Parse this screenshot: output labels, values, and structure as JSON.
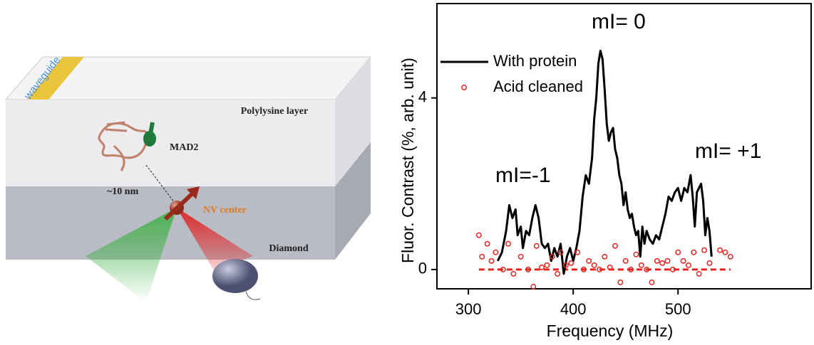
{
  "diagram": {
    "waveguide": "waveguide",
    "layer": "Polylysine layer",
    "protein": "MAD2",
    "distance": "~10 nm",
    "nv": "NV center",
    "substrate": "Diamond"
  },
  "chart_data": {
    "type": "line",
    "xlabel": "Frequency (MHz)",
    "ylabel": "Fluor. Contrast (%, arb. unit)",
    "xlim": [
      270,
      627
    ],
    "ylim": [
      -0.45,
      6.2
    ],
    "xticks": [
      300,
      400,
      500
    ],
    "yticks": [
      0,
      4
    ],
    "legend": "upper left",
    "annotations": [
      "mI= 0",
      "mI=-1",
      "mI= +1"
    ],
    "series": [
      {
        "name": "With protein",
        "color": "#000000",
        "type": "line",
        "x": [
          328,
          332,
          336,
          339,
          342,
          345,
          347,
          350,
          352,
          355,
          358,
          361,
          364,
          367,
          370,
          373,
          376,
          379,
          382,
          385,
          388,
          391,
          394,
          397,
          400,
          403,
          406,
          409,
          412,
          415,
          418,
          420,
          422,
          424,
          426,
          428,
          430,
          432,
          434,
          436,
          438,
          440,
          442,
          444,
          446,
          448,
          450,
          452,
          454,
          456,
          458,
          460,
          462,
          464,
          466,
          468,
          470,
          473,
          476,
          479,
          482,
          485,
          488,
          491,
          494,
          497,
          500,
          503,
          506,
          509,
          512,
          514,
          516,
          518,
          520,
          522,
          524,
          526,
          528,
          530,
          532
        ],
        "values": [
          0.2,
          0.4,
          0.9,
          1.5,
          1.2,
          1.4,
          0.8,
          1.0,
          0.5,
          0.9,
          0.8,
          1.2,
          1.5,
          1.2,
          0.6,
          0.5,
          0.6,
          0.2,
          0.5,
          0.3,
          0.6,
          -0.1,
          0.3,
          0.5,
          0.2,
          0.5,
          0.9,
          1.7,
          2.2,
          2.0,
          2.6,
          3.5,
          4.0,
          4.8,
          5.1,
          4.9,
          4.2,
          3.4,
          3.0,
          3.2,
          3.3,
          2.8,
          2.6,
          2.2,
          2.0,
          1.5,
          1.8,
          1.4,
          1.2,
          1.3,
          1.0,
          0.8,
          0.9,
          0.3,
          1.0,
          0.6,
          0.9,
          0.7,
          0.6,
          0.8,
          0.7,
          1.0,
          1.3,
          1.7,
          1.6,
          1.8,
          1.9,
          1.6,
          1.9,
          1.8,
          2.2,
          1.7,
          1.0,
          1.8,
          1.9,
          2.0,
          1.6,
          0.8,
          1.2,
          0.9,
          0.3
        ]
      },
      {
        "name": "Acid cleaned",
        "color": "#e8231f",
        "type": "scatter",
        "x": [
          310,
          313,
          318,
          322,
          326,
          333,
          338,
          343,
          350,
          357,
          362,
          365,
          370,
          375,
          380,
          385,
          388,
          393,
          398,
          404,
          410,
          415,
          420,
          425,
          430,
          435,
          440,
          445,
          450,
          455,
          460,
          465,
          470,
          475,
          480,
          485,
          490,
          495,
          500,
          505,
          510,
          515,
          520,
          525,
          530,
          540,
          545,
          550
        ],
        "values": [
          0.8,
          0.3,
          0.6,
          0.2,
          0.4,
          0.0,
          0.6,
          -0.1,
          0.3,
          0.0,
          -0.4,
          0.55,
          0.05,
          0.1,
          0.3,
          -0.1,
          0.4,
          0.1,
          0.15,
          0.4,
          0.0,
          0.2,
          0.1,
          0.0,
          0.3,
          0.05,
          0.55,
          -0.3,
          0.2,
          0.0,
          0.35,
          0.1,
          0.0,
          -0.3,
          0.2,
          0.15,
          0.2,
          0.0,
          0.4,
          0.2,
          0.1,
          0.4,
          -0.1,
          0.45,
          0.15,
          0.45,
          0.4,
          0.3
        ]
      }
    ],
    "baseline": {
      "y": 0,
      "x": [
        310,
        550
      ],
      "color": "#e8231f"
    }
  }
}
